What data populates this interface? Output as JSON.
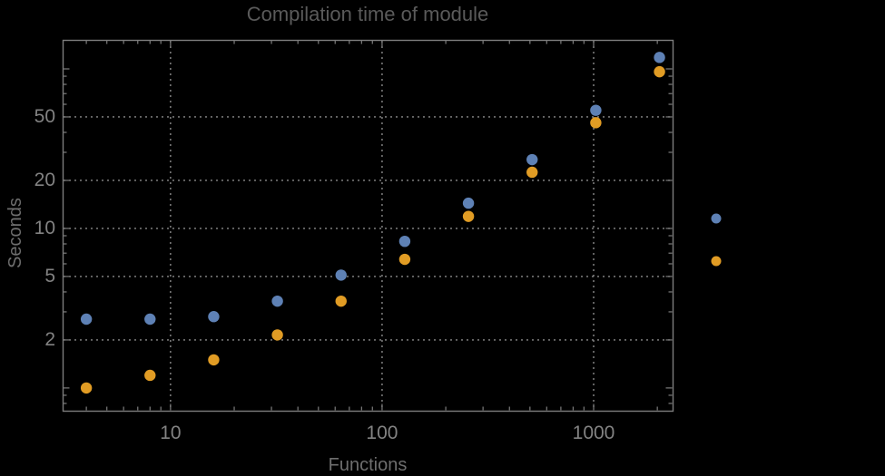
{
  "window": {
    "background": "#000000"
  },
  "colors": {
    "frame": "#7d7d7d",
    "gridline": "#8a8a8a",
    "tick": "#7d7d7d",
    "title_text": "#5a5a5a",
    "axis_label_text": "#6e6e6e",
    "tick_label_text": "#828282",
    "series_blue": "#5E81B5",
    "series_orange": "#E19C24"
  },
  "chart_data": {
    "type": "scatter",
    "title": "Compilation time of module",
    "xlabel": "Functions",
    "ylabel": "Seconds",
    "x_scale": "log",
    "y_scale": "log",
    "grid": "dotted",
    "x_range": [
      3.09,
      2362
    ],
    "y_range": [
      0.72,
      152
    ],
    "x_tick_values": [
      10,
      100,
      1000
    ],
    "x_tick_labels": [
      "10",
      "100",
      "1000"
    ],
    "y_tick_values": [
      2,
      5,
      10,
      20,
      50
    ],
    "y_tick_labels": [
      "2",
      "5",
      "10",
      "20",
      "50"
    ],
    "x": [
      4,
      8,
      16,
      32,
      64,
      128,
      256,
      512,
      1024,
      2048
    ],
    "series": [
      {
        "name": "series-1-blue",
        "color": "#5E81B5",
        "values": [
          2.7,
          2.7,
          2.8,
          3.5,
          5.1,
          8.3,
          14.4,
          27,
          55,
          118
        ]
      },
      {
        "name": "series-2-orange",
        "color": "#E19C24",
        "values": [
          1.0,
          1.2,
          1.5,
          2.15,
          3.5,
          6.4,
          11.9,
          22.5,
          46,
          96
        ]
      }
    ],
    "legend": {
      "position": "right-outside",
      "markers": [
        {
          "color": "#5E81B5",
          "label": ""
        },
        {
          "color": "#E19C24",
          "label": ""
        }
      ]
    }
  }
}
